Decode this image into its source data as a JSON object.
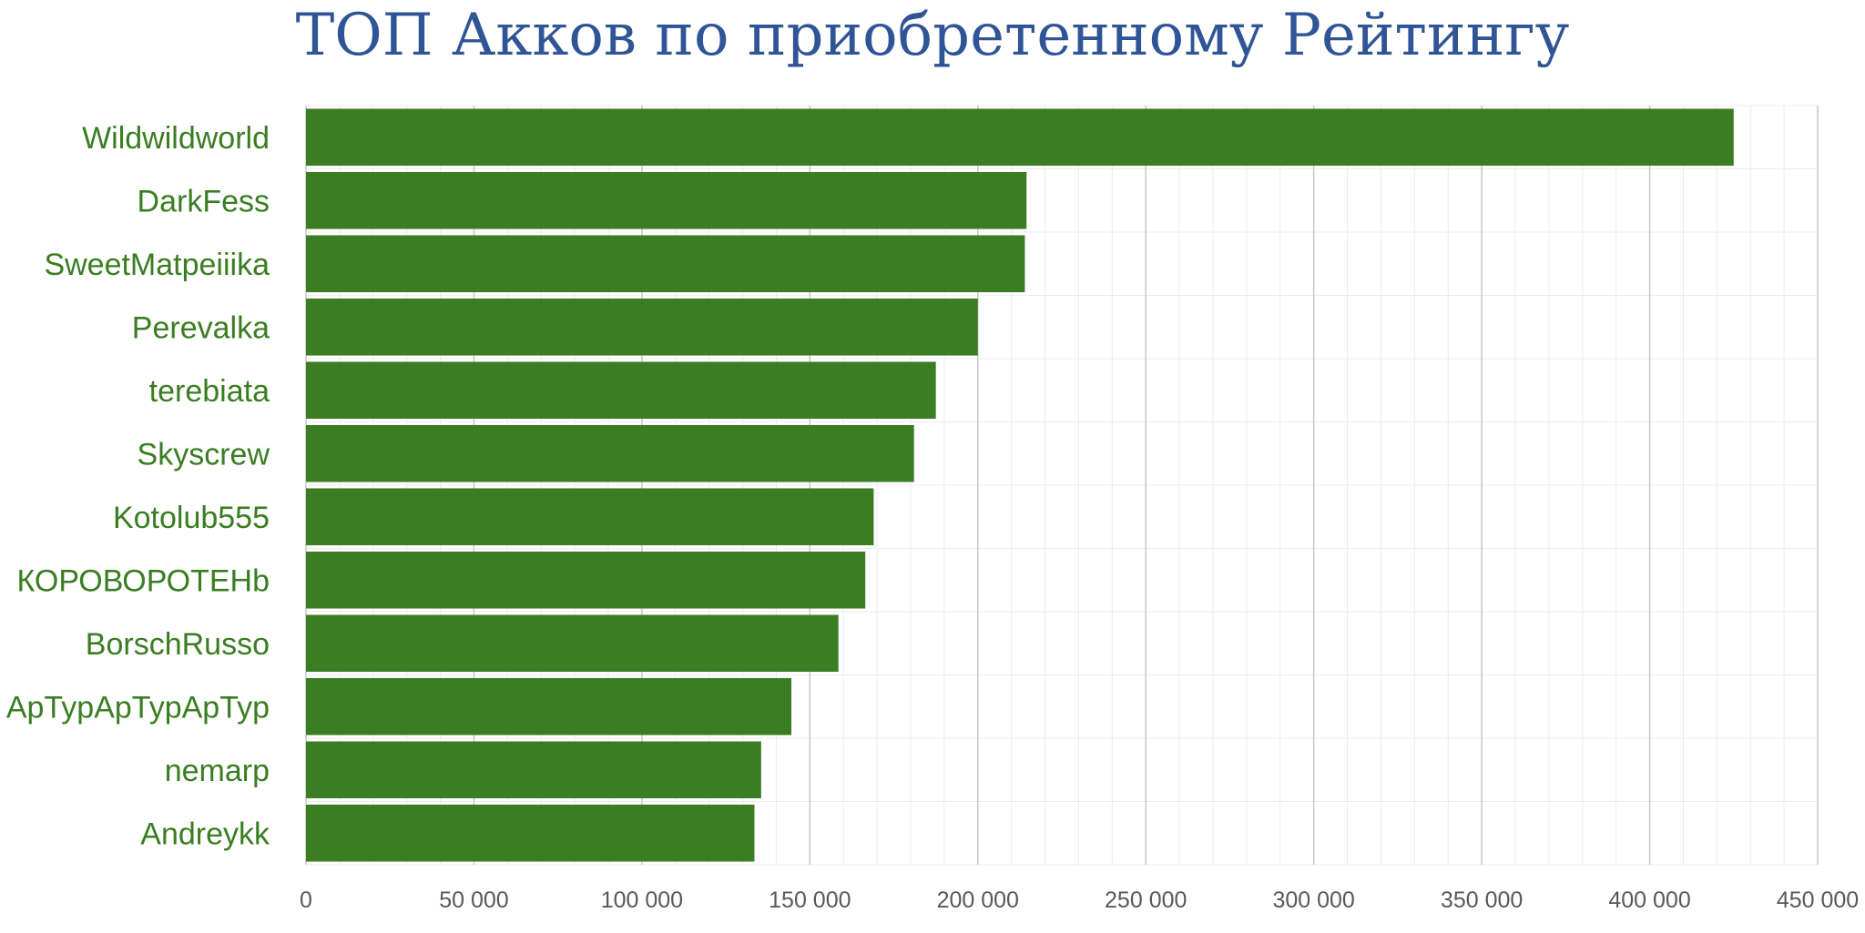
{
  "chart_data": {
    "type": "bar",
    "orientation": "horizontal",
    "title": "ТОП Акков по приобретенному Рейтингу",
    "xlabel": "",
    "ylabel": "",
    "categories": [
      "Wildwildworld",
      "DarkFess",
      "SweetMatpeiiika",
      "Perevalka",
      "terebiata",
      "Skyscrew",
      "Kotolub555",
      "КОРОВОРОТЕНb",
      "BorschRusso",
      "ApTypApTypApTyp",
      "nemarp",
      "Andreykk"
    ],
    "values": [
      425000,
      214500,
      214000,
      200000,
      187500,
      181000,
      169000,
      166500,
      158500,
      144500,
      135500,
      133500
    ],
    "xlim": [
      0,
      450000
    ],
    "ticks": [
      0,
      50000,
      100000,
      150000,
      200000,
      250000,
      300000,
      350000,
      400000,
      450000
    ],
    "tick_labels": [
      "0",
      "50 000",
      "100 000",
      "150 000",
      "200 000",
      "250 000",
      "300 000",
      "350 000",
      "400 000",
      "450 000"
    ],
    "grid": true,
    "minor_grid": true,
    "legend": "none",
    "colors": {
      "bar": "#3a7d22",
      "category_text": "#3a7d22",
      "title": "#2f5597",
      "tick_text": "#595959",
      "major_grid": "#c8c8c8",
      "minor_grid": "#ececec"
    }
  }
}
